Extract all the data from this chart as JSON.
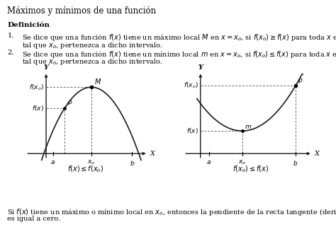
{
  "title": "Máximos y mínimos de una función",
  "definition_title": "Definición",
  "item1_num": "1.",
  "item1_line1": "Se dice que una función $f(x)$ tiene un máximo local $M$ en $x = x_o$, si $f(x_o) \\geq f(x)$ para toda $x$ en un intervalo $(a, b)$",
  "item1_line2": "tal que $x_o$, pertenezca a dicho intervalo.",
  "item2_num": "2.",
  "item2_line1": "Se dice que una función $f(x)$ tiene un mínimo local $m$ en $x = x_o$, si $f(x_o) \\leq f(x)$ para toda $x$ en un intervalo $(a, b)$",
  "item2_line2": "tal que $x_o$, pertenezca a dicho intervalo.",
  "footer_line1": "Si $f(x)$ tiene un máximo o mínimo local en $x_o$, entonces la pendiente de la recta tangente (derivada) en dicho punto",
  "footer_line2": "es igual a cero.",
  "left_caption": "$f(x) \\leq f(x_o)$",
  "right_caption": "$f(x_o) \\leq f(x)$",
  "bg_color": "#ffffff",
  "text_color": "#000000",
  "curve_color": "#1a1a1a",
  "dashed_color": "#666666",
  "axes_color": "#000000"
}
